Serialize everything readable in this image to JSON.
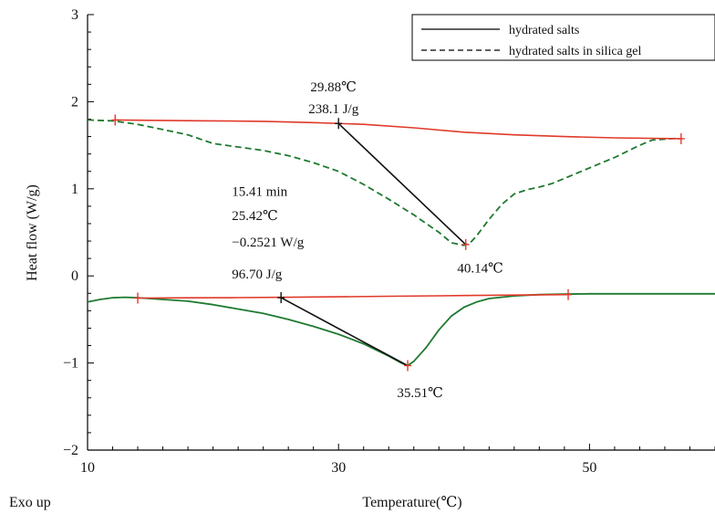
{
  "chart_data": {
    "type": "line",
    "xlabel": "Temperature(℃)",
    "ylabel": "Heat flow  (W/g)",
    "corner_label": "Exo up",
    "xlim": [
      10,
      60
    ],
    "ylim": [
      -2,
      3
    ],
    "x_ticks": [
      10,
      30,
      50
    ],
    "x_tick_labels": [
      "10",
      "30",
      "50"
    ],
    "y_ticks": [
      -2,
      -1,
      0,
      1,
      2,
      3
    ],
    "y_tick_labels": [
      "−2",
      "−1",
      "0",
      "1",
      "2",
      "3"
    ],
    "legend": {
      "placement": "top-right",
      "entries": [
        {
          "label": "hydrated salts",
          "style": "solid",
          "color": "#000000"
        },
        {
          "label": "hydrated salts in silica gel",
          "style": "dashed",
          "color": "#000000"
        }
      ]
    },
    "series": [
      {
        "name": "hydrated salts",
        "style": "solid",
        "color": "#1f7a30",
        "x": [
          10,
          11,
          12,
          13,
          14,
          16,
          18,
          20,
          22,
          24,
          26,
          28,
          30,
          32,
          34,
          35,
          35.5,
          36,
          37,
          38,
          39,
          40,
          41,
          42,
          44,
          46,
          48,
          50,
          55,
          60
        ],
        "y": [
          -0.3,
          -0.27,
          -0.25,
          -0.245,
          -0.25,
          -0.27,
          -0.29,
          -0.33,
          -0.38,
          -0.43,
          -0.5,
          -0.58,
          -0.67,
          -0.78,
          -0.92,
          -1.0,
          -1.03,
          -0.98,
          -0.82,
          -0.62,
          -0.46,
          -0.36,
          -0.3,
          -0.26,
          -0.23,
          -0.215,
          -0.21,
          -0.205,
          -0.205,
          -0.205
        ]
      },
      {
        "name": "hydrated salts in silica gel",
        "style": "dashed",
        "color": "#1f7a30",
        "x": [
          10,
          12,
          14,
          16,
          18,
          20,
          22,
          24,
          26,
          28,
          30,
          32,
          34,
          36,
          38,
          39,
          40,
          40.5,
          41,
          42,
          43,
          44,
          45,
          46,
          47,
          48,
          50,
          52,
          54,
          55,
          57
        ],
        "y": [
          1.79,
          1.78,
          1.74,
          1.68,
          1.62,
          1.52,
          1.48,
          1.44,
          1.38,
          1.3,
          1.2,
          1.05,
          0.88,
          0.7,
          0.5,
          0.38,
          0.35,
          0.38,
          0.46,
          0.65,
          0.82,
          0.94,
          0.99,
          1.02,
          1.06,
          1.12,
          1.24,
          1.36,
          1.5,
          1.56,
          1.58
        ]
      }
    ],
    "baselines": [
      {
        "name": "baseline-upper",
        "color": "#e03a2a",
        "x": [
          12.2,
          16,
          20,
          24,
          28,
          32,
          36,
          40,
          44,
          48,
          52,
          57.3
        ],
        "y": [
          1.79,
          1.785,
          1.78,
          1.775,
          1.76,
          1.74,
          1.7,
          1.65,
          1.62,
          1.6,
          1.585,
          1.575
        ]
      },
      {
        "name": "baseline-lower",
        "color": "#e03a2a",
        "x": [
          14,
          18,
          22,
          26,
          30,
          34,
          38,
          42,
          46,
          48.3
        ],
        "y": [
          -0.255,
          -0.252,
          -0.249,
          -0.245,
          -0.24,
          -0.234,
          -0.228,
          -0.222,
          -0.217,
          -0.215
        ]
      }
    ],
    "tangent_lines": [
      {
        "name": "tangent-upper",
        "color": "#111111",
        "x": [
          30,
          40.14
        ],
        "y": [
          1.75,
          0.36
        ]
      },
      {
        "name": "tangent-lower",
        "color": "#111111",
        "x": [
          25.42,
          35.51
        ],
        "y": [
          -0.25,
          -1.03
        ]
      }
    ],
    "markers": [
      {
        "x": 12.2,
        "y": 1.79,
        "color": "#e03a2a"
      },
      {
        "x": 57.3,
        "y": 1.575,
        "color": "#e03a2a"
      },
      {
        "x": 40.14,
        "y": 0.36,
        "color": "#e03a2a"
      },
      {
        "x": 14,
        "y": -0.255,
        "color": "#e03a2a"
      },
      {
        "x": 48.3,
        "y": -0.215,
        "color": "#e03a2a"
      },
      {
        "x": 35.51,
        "y": -1.03,
        "color": "#e03a2a"
      },
      {
        "x": 30,
        "y": 1.75,
        "color": "#111111"
      },
      {
        "x": 25.42,
        "y": -0.25,
        "color": "#111111"
      }
    ],
    "annotations": [
      {
        "text": "29.88℃",
        "x": 29.6,
        "y": 2.12,
        "anchor": "middle"
      },
      {
        "text": "238.1 J/g",
        "x": 29.6,
        "y": 1.87,
        "anchor": "middle"
      },
      {
        "text": "15.41 min",
        "x": 21.5,
        "y": 0.92,
        "anchor": "start"
      },
      {
        "text": "25.42℃",
        "x": 21.5,
        "y": 0.64,
        "anchor": "start"
      },
      {
        "text": "−0.2521 W/g",
        "x": 21.5,
        "y": 0.34,
        "anchor": "start"
      },
      {
        "text": "96.70 J/g",
        "x": 21.5,
        "y": -0.03,
        "anchor": "start"
      },
      {
        "text": "40.14℃",
        "x": 41.3,
        "y": 0.04,
        "anchor": "middle"
      },
      {
        "text": "35.51℃",
        "x": 36.5,
        "y": -1.39,
        "anchor": "middle"
      }
    ]
  }
}
